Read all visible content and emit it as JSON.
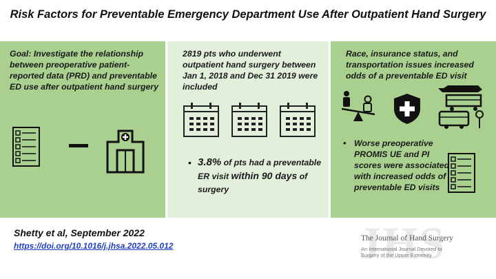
{
  "title": "Risk Factors for Preventable Emergency Department Use After Outpatient Hand Surgery",
  "panel1": {
    "goal": "Goal: Investigate the relationship between preoperative patient-reported data (PRD) and preventable ED use after outpatient hand surgery",
    "icons": [
      "checklist-icon",
      "dash-icon",
      "hospital-icon"
    ]
  },
  "panel2": {
    "cohort": "2819 pts who underwent outpatient hand surgery between Jan 1, 2018 and Dec 31 2019 were included",
    "stat_pct": "3.8%",
    "stat_mid": " of pts had a preventable ER visit ",
    "stat_days": "within 90 days",
    "stat_end": " of surgery",
    "icons": [
      "calendar-icon",
      "calendar-icon",
      "calendar-icon"
    ]
  },
  "panel3": {
    "finding1": "Race, insurance status, and transportation issues increased odds of a preventable ED visit",
    "finding2": "Worse preoperative PROMIS UE and PI scores were associated with increased odds of preventable ED visits",
    "icons": [
      "seesaw-icon",
      "shield-cross-icon",
      "transport-icon",
      "checklist-icon"
    ]
  },
  "citation": {
    "author": "Shetty et al, September 2022",
    "doi": "https://doi.org/10.1016/j.jhsa.2022.05.012"
  },
  "journal": {
    "logo_letters": "JHS",
    "name": "The Journal of Hand Surgery",
    "tagline": "An International Journal Devoted to Surgery of the Upper Extremity"
  },
  "colors": {
    "panel_dark": "#a9d08e",
    "panel_light": "#e2efda",
    "link": "#1f3fbf"
  }
}
